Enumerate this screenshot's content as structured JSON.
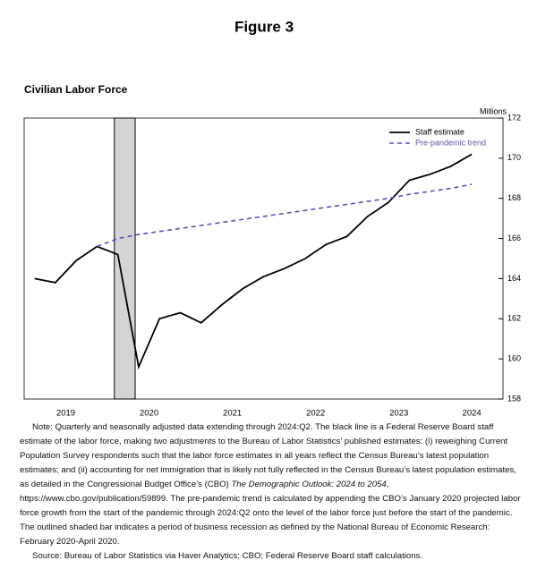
{
  "header": "Figure 3",
  "chart_data": {
    "type": "line",
    "title": "Civilian Labor Force",
    "y_unit": "Millions",
    "x": [
      2019.125,
      2019.375,
      2019.625,
      2019.875,
      2020.125,
      2020.375,
      2020.625,
      2020.875,
      2021.125,
      2021.375,
      2021.625,
      2021.875,
      2022.125,
      2022.375,
      2022.625,
      2022.875,
      2023.125,
      2023.375,
      2023.625,
      2023.875,
      2024.125,
      2024.375
    ],
    "series": [
      {
        "name": "Staff estimate",
        "color": "#000000",
        "dash": false,
        "values": [
          164.0,
          163.8,
          164.9,
          165.6,
          165.2,
          159.6,
          162.0,
          162.3,
          161.8,
          162.7,
          163.5,
          164.1,
          164.5,
          165.0,
          165.7,
          166.1,
          167.1,
          167.8,
          168.9,
          169.2,
          169.6,
          170.2
        ]
      },
      {
        "name": "Pre-pandemic trend",
        "color": "#6a4fa3",
        "dash": true,
        "values": [
          null,
          null,
          null,
          165.6,
          166.0,
          166.2,
          166.35,
          166.5,
          166.65,
          166.8,
          166.95,
          167.1,
          167.25,
          167.4,
          167.55,
          167.7,
          167.85,
          168.0,
          168.2,
          168.35,
          168.5,
          168.7
        ]
      }
    ],
    "recession": [
      2020.083,
      2020.333
    ],
    "xlim": [
      2019.0,
      2024.75
    ],
    "xticks": [
      {
        "value": 2019.5,
        "label": "2019"
      },
      {
        "value": 2020.5,
        "label": "2020"
      },
      {
        "value": 2021.5,
        "label": "2021"
      },
      {
        "value": 2022.5,
        "label": "2022"
      },
      {
        "value": 2023.5,
        "label": "2023"
      },
      {
        "value": 2024.375,
        "label": "2024"
      }
    ],
    "ylim": [
      158,
      172
    ],
    "yticks": [
      158,
      160,
      162,
      164,
      166,
      168,
      170,
      172
    ],
    "legend": "upper right"
  },
  "note": {
    "start": "Note:  Quarterly and seasonally adjusted data extending through 2024:Q2.  The black line is a Federal Reserve Board staff estimate of the labor force, making two adjustments to the Bureau of Labor Statistics’ published estimates: (i) reweighing Current Population Survey respondents such that the labor force estimates in all years reflect the Census Bureau’s latest population estimates; and (ii) accounting for net immigration that is likely not fully reflected in the Census Bureau’s latest population estimates, as detailed in the Congressional Budget Office’s (CBO)",
    "italic": "The Demographic Outlook: 2024 to 2054",
    "end": ", https://www.cbo.gov/publication/59899. The pre-pandemic trend is calculated by appending the CBO’s January 2020 projected labor force growth from the start of the pandemic through 2024:Q2 onto the level of the labor force just before the start of the pandemic. The outlined shaded bar indicates a period of business recession as defined by the National Bureau of Economic Research: February 2020-April 2020."
  },
  "source": "Source: Bureau of Labor Statistics via Haver Analytics; CBO; Federal Reserve Board staff calculations."
}
